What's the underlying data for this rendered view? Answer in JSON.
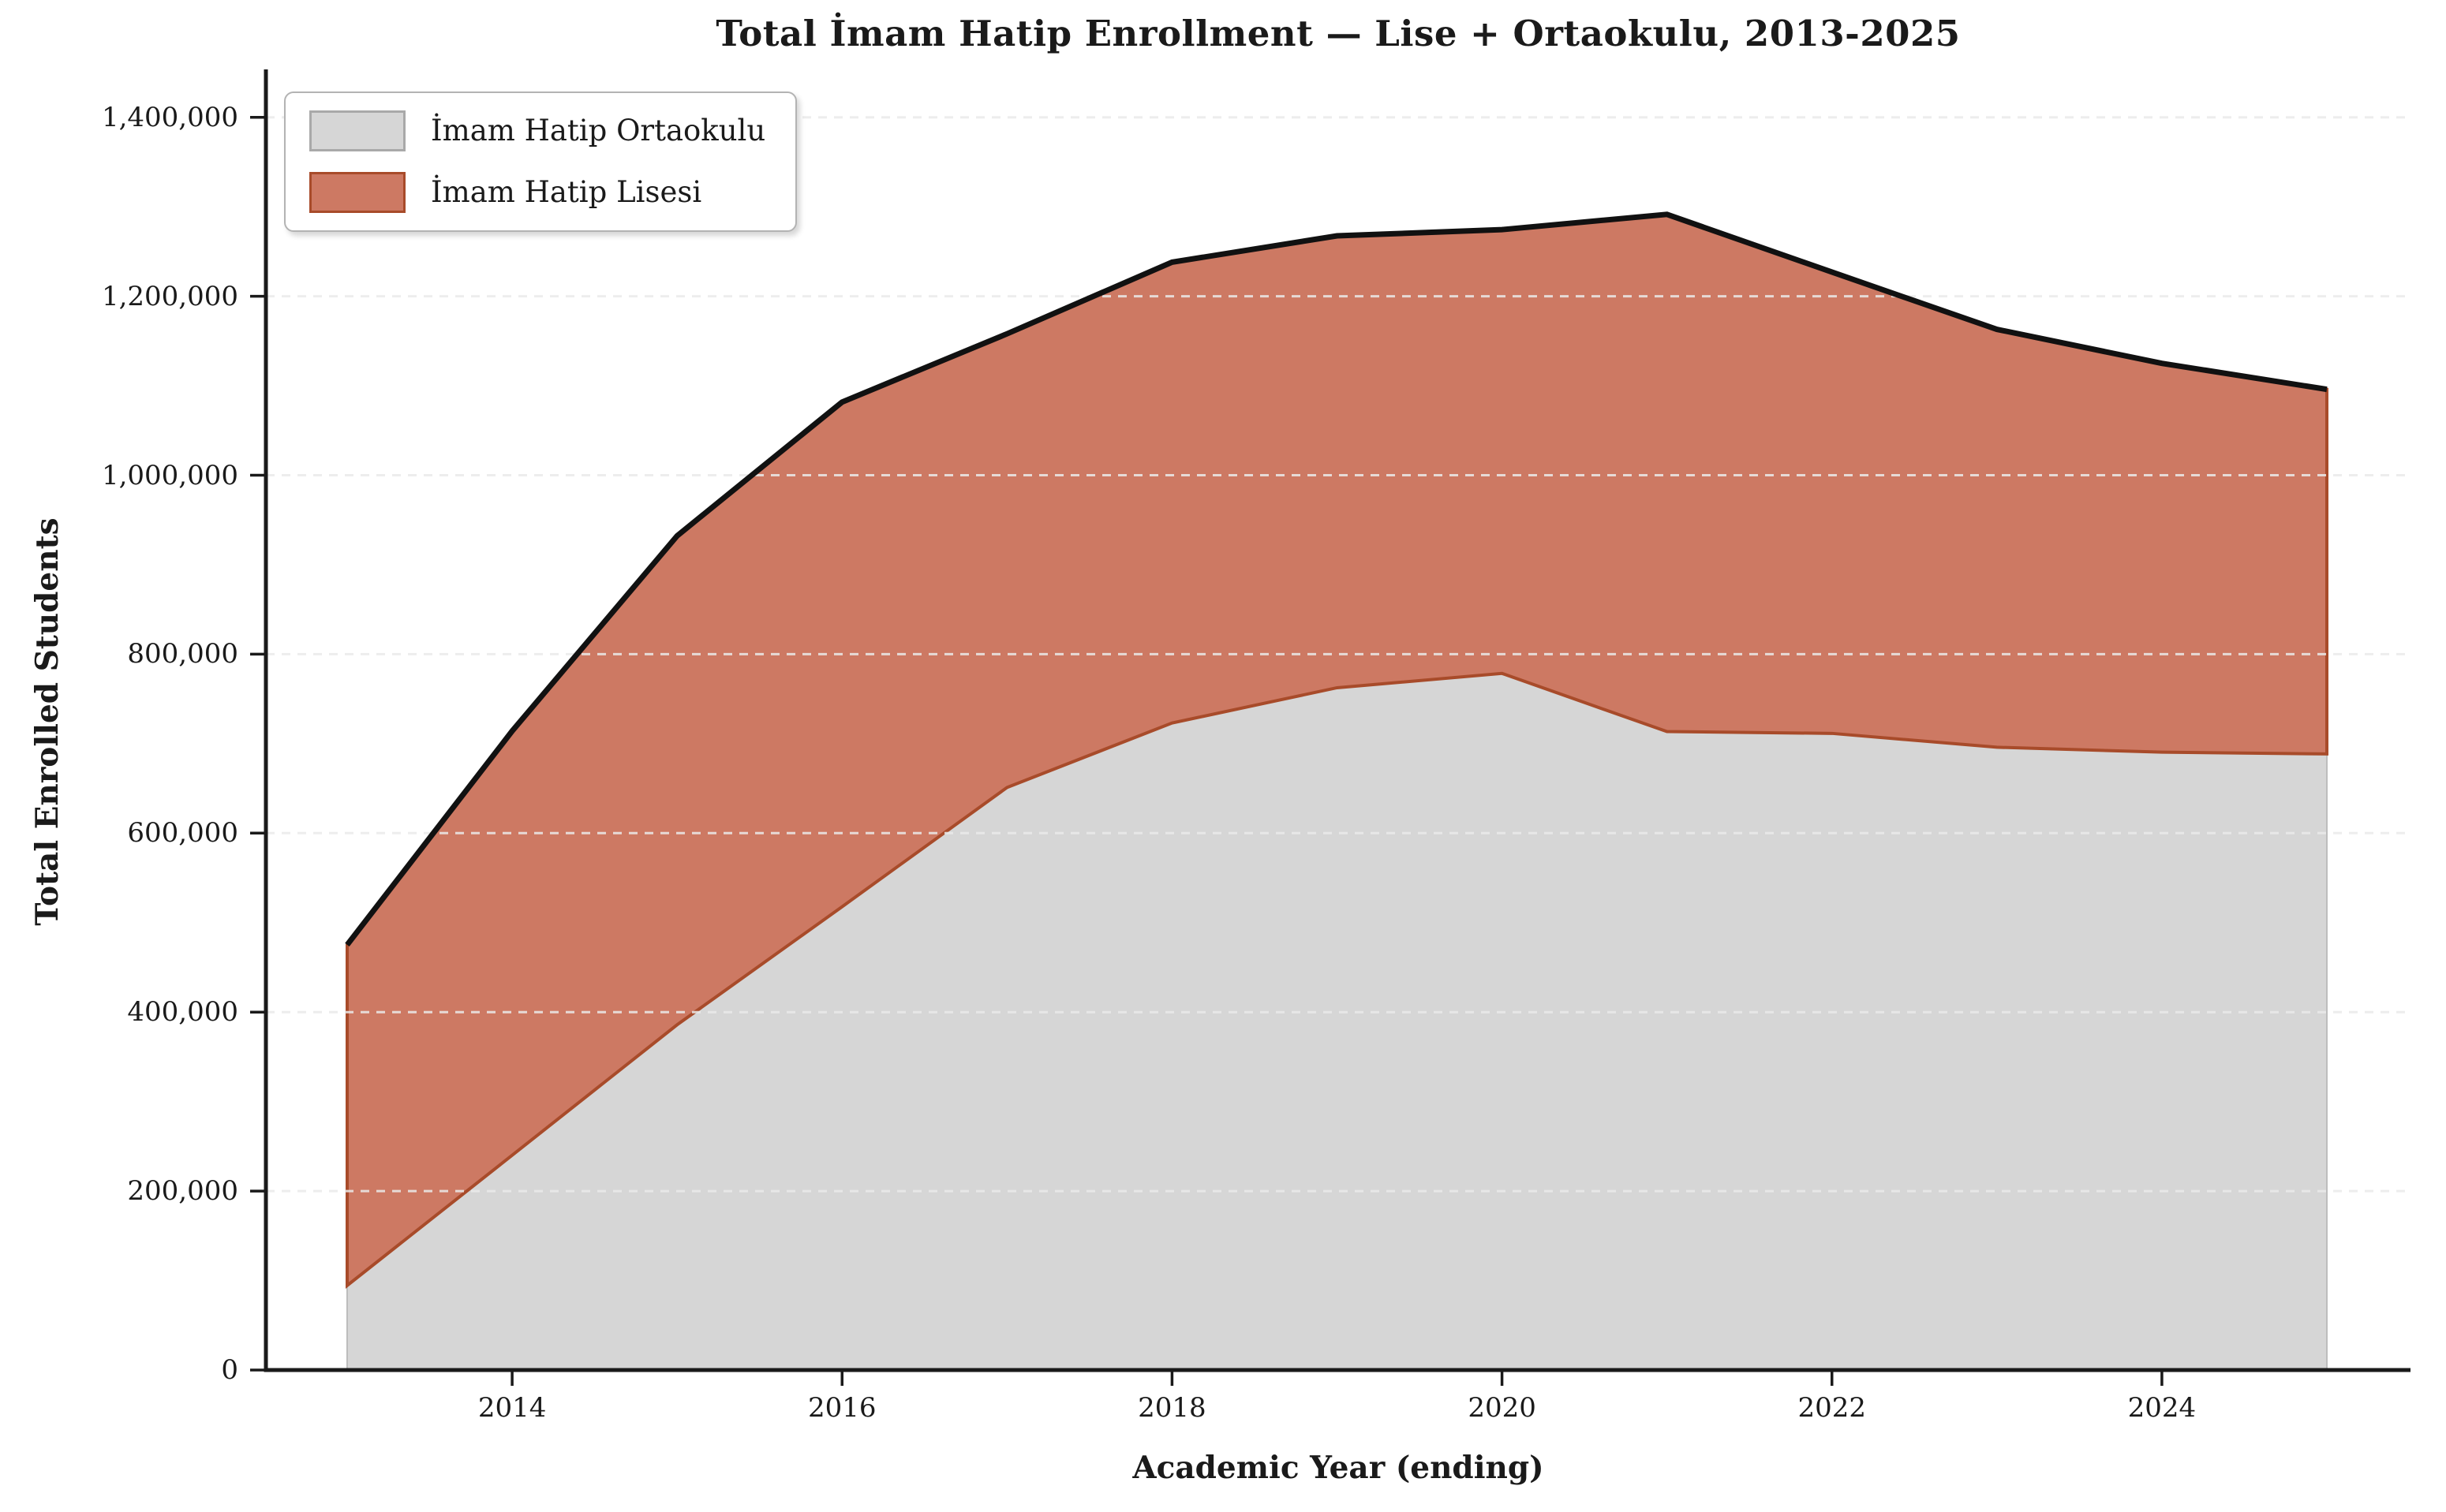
{
  "title": "Total İmam Hatip Enrollment — Lise + Ortaokulu, 2013-2025",
  "axes": {
    "xlabel": "Academic Year (ending)",
    "ylabel": "Total Enrolled Students"
  },
  "legend": {
    "position": "upper-left",
    "items": [
      {
        "label": "İmam Hatip Ortaokulu",
        "fill": "#d6d6d6",
        "border": "#a9a9a9"
      },
      {
        "label": "İmam Hatip Lisesi",
        "fill": "#cd7963",
        "border": "#a84b2a"
      }
    ]
  },
  "chart_data": {
    "type": "area",
    "stacked": true,
    "title": "Total İmam Hatip Enrollment — Lise + Ortaokulu, 2013-2025",
    "xlabel": "Academic Year (ending)",
    "ylabel": "Total Enrolled Students",
    "x": [
      2013,
      2014,
      2015,
      2016,
      2017,
      2018,
      2019,
      2020,
      2021,
      2022,
      2023,
      2024,
      2025
    ],
    "series": [
      {
        "name": "İmam Hatip Ortaokulu",
        "values": [
          94467,
          240015,
          385830,
          517782,
          651064,
          723108,
          762500,
          778500,
          713500,
          711500,
          696000,
          690500,
          688500
        ],
        "fill": "#d6d6d6",
        "edge": "#bdbdbd",
        "edge_width": 2
      },
      {
        "name": "İmam Hatip Lisesi",
        "values": [
          380771,
          474096,
          546443,
          564000,
          507000,
          515000,
          505000,
          496000,
          578000,
          515500,
          467000,
          434500,
          407500
        ],
        "fill": "#cd7963",
        "edge": "#a84b2a",
        "edge_width": 4
      }
    ],
    "totals": [
      475238,
      714111,
      932273,
      1081782,
      1158064,
      1238108,
      1267500,
      1274500,
      1291500,
      1227000,
      1163000,
      1125000,
      1096000
    ],
    "total_line": {
      "color": "#111111",
      "width": 7
    },
    "ylim": [
      0,
      1450000
    ],
    "ytick_values": [
      0,
      200000,
      400000,
      600000,
      800000,
      1000000,
      1200000,
      1400000
    ],
    "ytick_labels": [
      "0",
      "200,000",
      "400,000",
      "600,000",
      "800,000",
      "1,000,000",
      "1,200,000",
      "1,400,000"
    ],
    "xtick_years": [
      2014,
      2016,
      2018,
      2020,
      2022,
      2024
    ],
    "xtick_labels": [
      "2014",
      "2016",
      "2018",
      "2020",
      "2022",
      "2024"
    ],
    "grid": {
      "axis": "y",
      "color": "#ebebeb",
      "opacity": 0.85,
      "dash": "11,9",
      "on": true
    },
    "legend_position": "upper-left",
    "spine_color": "#1a1a1a",
    "background": "#ffffff"
  }
}
